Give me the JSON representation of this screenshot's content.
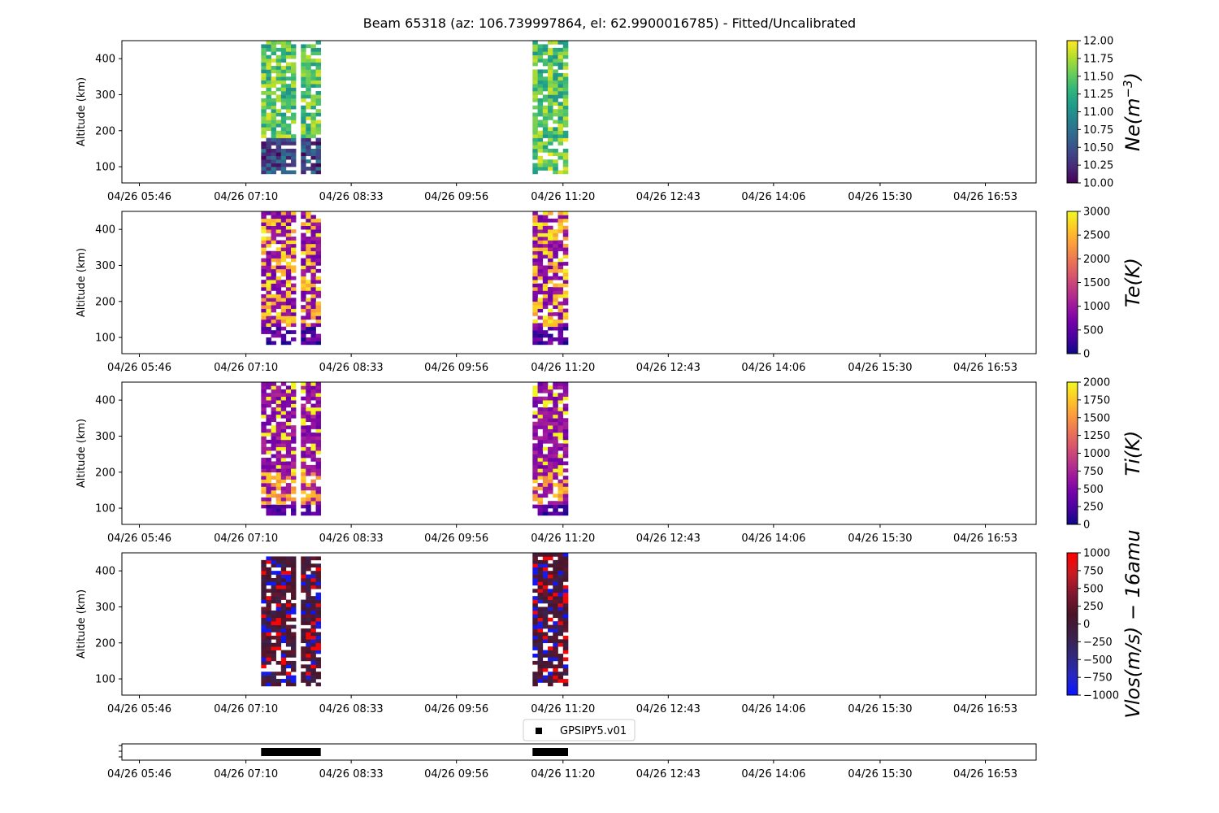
{
  "title": "Beam 65318 (az: 106.739997864, el: 62.9900016785) - Fitted/Uncalibrated",
  "chart_data": [
    {
      "type": "heatmap",
      "panel": "Ne",
      "colorbar_label": "Ne(m^-3)",
      "colorbar_label_parts": [
        "Ne(m",
        "−3",
        ")"
      ],
      "colormap": "viridis",
      "clim": [
        10.0,
        12.0
      ],
      "colorbar_ticks": [
        "10.00",
        "10.25",
        "10.50",
        "10.75",
        "11.00",
        "11.25",
        "11.50",
        "11.75",
        "12.00"
      ],
      "ylabel": "Altitude (km)",
      "yticks": [
        "100",
        "200",
        "300",
        "400"
      ],
      "ylim": [
        55,
        450
      ],
      "xticks": [
        "04/26 05:46",
        "04/26 07:10",
        "04/26 08:33",
        "04/26 09:56",
        "04/26 11:20",
        "04/26 12:43",
        "04/26 14:06",
        "04/26 15:30",
        "04/26 16:53"
      ],
      "data_blocks": [
        {
          "time_start": "04/26 07:22",
          "time_end": "04/26 08:09",
          "altitude_range": [
            80,
            450
          ]
        },
        {
          "time_start": "04/26 10:56",
          "time_end": "04/26 11:24",
          "altitude_range": [
            80,
            450
          ]
        }
      ]
    },
    {
      "type": "heatmap",
      "panel": "Te",
      "colorbar_label": "Te(K)",
      "colormap": "plasma",
      "clim": [
        0,
        3000
      ],
      "colorbar_ticks": [
        "0",
        "500",
        "1000",
        "1500",
        "2000",
        "2500",
        "3000"
      ],
      "ylabel": "Altitude (km)",
      "yticks": [
        "100",
        "200",
        "300",
        "400"
      ],
      "ylim": [
        55,
        450
      ],
      "xticks": [
        "04/26 05:46",
        "04/26 07:10",
        "04/26 08:33",
        "04/26 09:56",
        "04/26 11:20",
        "04/26 12:43",
        "04/26 14:06",
        "04/26 15:30",
        "04/26 16:53"
      ],
      "data_blocks": [
        {
          "time_start": "04/26 07:22",
          "time_end": "04/26 08:09",
          "altitude_range": [
            80,
            450
          ]
        },
        {
          "time_start": "04/26 10:56",
          "time_end": "04/26 11:24",
          "altitude_range": [
            80,
            450
          ]
        }
      ]
    },
    {
      "type": "heatmap",
      "panel": "Ti",
      "colorbar_label": "Ti(K)",
      "colormap": "plasma",
      "clim": [
        0,
        2000
      ],
      "colorbar_ticks": [
        "0",
        "250",
        "500",
        "750",
        "1000",
        "1250",
        "1500",
        "1750",
        "2000"
      ],
      "ylabel": "Altitude (km)",
      "yticks": [
        "100",
        "200",
        "300",
        "400"
      ],
      "ylim": [
        55,
        450
      ],
      "xticks": [
        "04/26 05:46",
        "04/26 07:10",
        "04/26 08:33",
        "04/26 09:56",
        "04/26 11:20",
        "04/26 12:43",
        "04/26 14:06",
        "04/26 15:30",
        "04/26 16:53"
      ],
      "data_blocks": [
        {
          "time_start": "04/26 07:22",
          "time_end": "04/26 08:09",
          "altitude_range": [
            80,
            450
          ]
        },
        {
          "time_start": "04/26 10:56",
          "time_end": "04/26 11:24",
          "altitude_range": [
            80,
            450
          ]
        }
      ]
    },
    {
      "type": "heatmap",
      "panel": "Vlos",
      "colorbar_label": "Vlos(m/s) − 16amu",
      "colormap": "bwr-dark",
      "clim": [
        -1000,
        1000
      ],
      "colorbar_ticks": [
        "−1000",
        "−750",
        "−500",
        "−250",
        "0",
        "250",
        "500",
        "750",
        "1000"
      ],
      "ylabel": "Altitude (km)",
      "yticks": [
        "100",
        "200",
        "300",
        "400"
      ],
      "ylim": [
        55,
        450
      ],
      "xticks": [
        "04/26 05:46",
        "04/26 07:10",
        "04/26 08:33",
        "04/26 09:56",
        "04/26 11:20",
        "04/26 12:43",
        "04/26 14:06",
        "04/26 15:30",
        "04/26 16:53"
      ],
      "data_blocks": [
        {
          "time_start": "04/26 07:22",
          "time_end": "04/26 08:09",
          "altitude_range": [
            80,
            440
          ]
        },
        {
          "time_start": "04/26 10:56",
          "time_end": "04/26 11:24",
          "altitude_range": [
            80,
            450
          ]
        }
      ]
    },
    {
      "type": "scatter",
      "panel": "timeline",
      "legend": [
        "GPSIPY5.v01"
      ],
      "legend_position": "top-center",
      "marker": "square",
      "color": "#000000",
      "xticks": [
        "04/26 05:46",
        "04/26 07:10",
        "04/26 08:33",
        "04/26 09:56",
        "04/26 11:20",
        "04/26 12:43",
        "04/26 14:06",
        "04/26 15:30",
        "04/26 16:53"
      ],
      "segments": [
        {
          "time_start": "04/26 07:22",
          "time_end": "04/26 08:09"
        },
        {
          "time_start": "04/26 10:56",
          "time_end": "04/26 11:24"
        }
      ]
    }
  ]
}
